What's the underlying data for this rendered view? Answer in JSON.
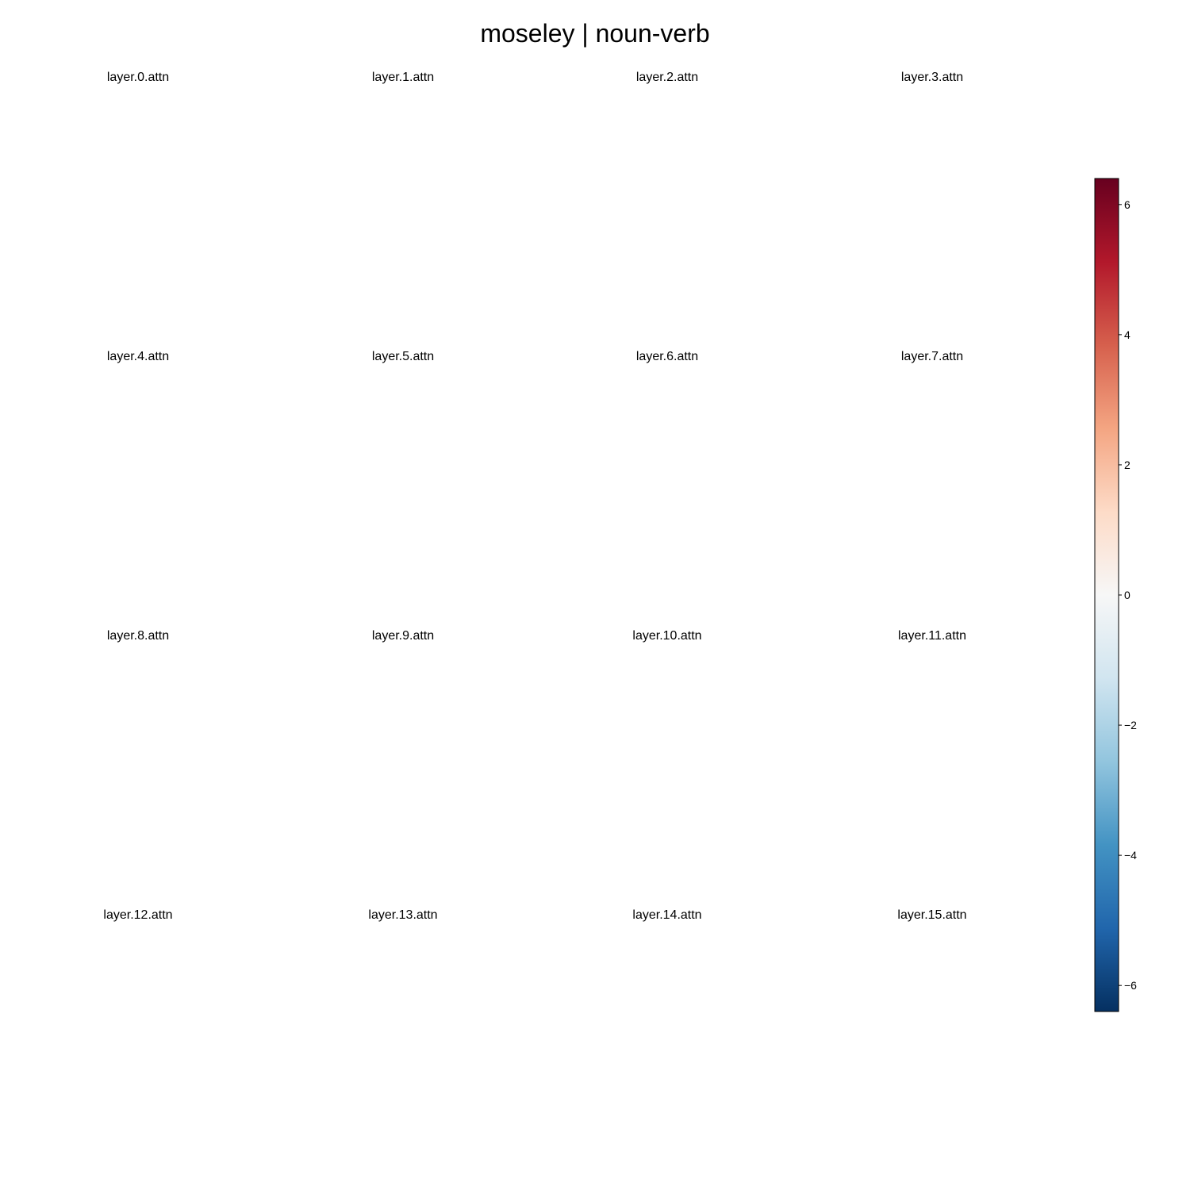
{
  "figure": {
    "title": "moseley | noun-verb"
  },
  "chart_data": {
    "type": "heatmap",
    "title": "moseley | noun-verb",
    "panels": [
      {
        "title": "layer.0.attn",
        "values": []
      },
      {
        "title": "layer.1.attn",
        "values": []
      },
      {
        "title": "layer.2.attn",
        "values": []
      },
      {
        "title": "layer.3.attn",
        "values": []
      },
      {
        "title": "layer.4.attn",
        "values": []
      },
      {
        "title": "layer.5.attn",
        "values": []
      },
      {
        "title": "layer.6.attn",
        "values": []
      },
      {
        "title": "layer.7.attn",
        "values": []
      },
      {
        "title": "layer.8.attn",
        "values": []
      },
      {
        "title": "layer.9.attn",
        "values": []
      },
      {
        "title": "layer.10.attn",
        "values": []
      },
      {
        "title": "layer.11.attn",
        "values": []
      },
      {
        "title": "layer.12.attn",
        "values": []
      },
      {
        "title": "layer.13.attn",
        "values": []
      },
      {
        "title": "layer.14.attn",
        "values": []
      },
      {
        "title": "layer.15.attn",
        "values": []
      }
    ],
    "grid_rows": 4,
    "grid_cols": 4,
    "colorbar": {
      "colormap": "RdBu_r",
      "range": [
        -6.4,
        6.4
      ],
      "ticks": [
        {
          "value": 6,
          "label": "6"
        },
        {
          "value": 4,
          "label": "4"
        },
        {
          "value": 2,
          "label": "2"
        },
        {
          "value": 0,
          "label": "0"
        },
        {
          "value": -2,
          "label": "−2"
        },
        {
          "value": -4,
          "label": "−4"
        },
        {
          "value": -6,
          "label": "−6"
        }
      ],
      "colors": [
        "#053061",
        "#2166ac",
        "#4393c3",
        "#92c5de",
        "#d1e5f0",
        "#f7f7f7",
        "#fddbc7",
        "#f4a582",
        "#d6604d",
        "#b2182b",
        "#67001f"
      ]
    },
    "grid": false,
    "axes_visible": false
  }
}
